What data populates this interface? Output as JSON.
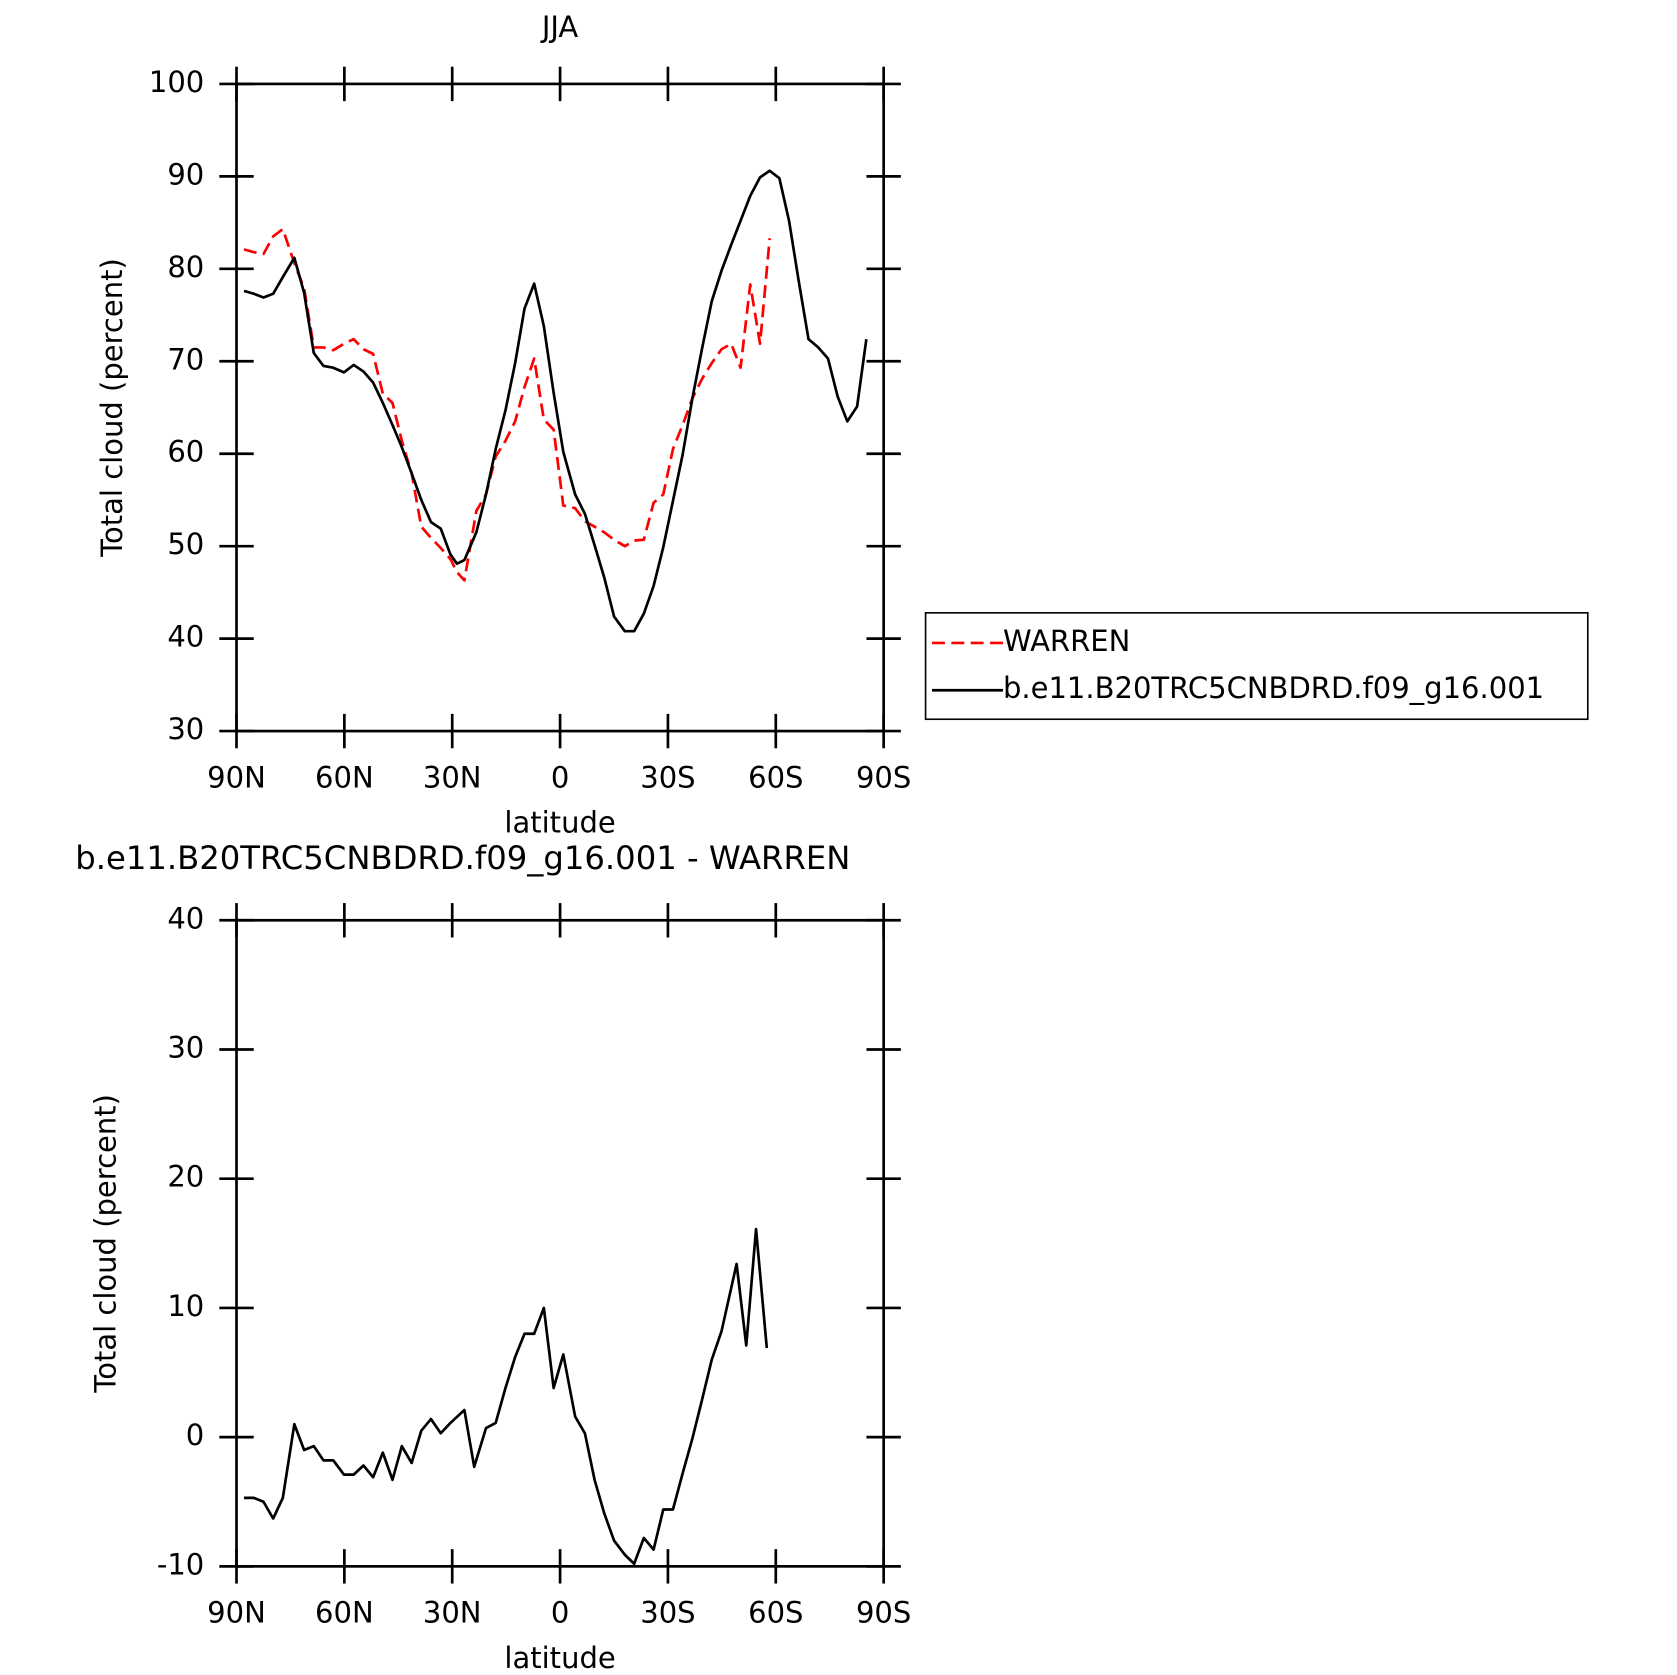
{
  "chart_data": [
    {
      "type": "line",
      "title": "JJA",
      "xlabel": "latitude",
      "ylabel": "Total cloud (percent)",
      "x": [
        87.9,
        85.2,
        82.5,
        79.8,
        77.1,
        73.9,
        71.2,
        68.5,
        65.8,
        63.1,
        60.1,
        57.4,
        54.7,
        52.0,
        49.3,
        46.6,
        44.0,
        41.3,
        38.6,
        35.9,
        33.2,
        30.5,
        28.7,
        26.6,
        23.3,
        20.6,
        17.9,
        15.2,
        12.5,
        9.9,
        7.2,
        4.5,
        1.8,
        -0.9,
        -4.2,
        -6.9,
        -9.6,
        -12.3,
        -15.0,
        -18.0,
        -20.6,
        -23.3,
        -26.0,
        -28.7,
        -31.4,
        -34.1,
        -36.8,
        -39.5,
        -42.2,
        -44.9,
        -47.6,
        -50.2,
        -52.9,
        -55.6,
        -58.3,
        -61.0,
        -63.7,
        -66.4,
        -69.1,
        -71.8,
        -74.5,
        -77.2,
        -79.9,
        -82.6,
        -85.2
      ],
      "series": [
        {
          "name": "WARREN",
          "color": "#ff0000",
          "linestyle": "dashed",
          "values": [
            82.1,
            81.8,
            81.6,
            83.5,
            84.3,
            80.6,
            77.9,
            71.5,
            71.5,
            71.2,
            71.9,
            72.4,
            71.3,
            70.8,
            66.5,
            65.5,
            61.4,
            57.9,
            52.1,
            50.9,
            49.8,
            48.6,
            47.2,
            46.3,
            53.8,
            55.6,
            59.7,
            61.4,
            63.5,
            67.2,
            70.3,
            63.7,
            62.6,
            54.4,
            54.1,
            52.7,
            52.1,
            51.5,
            50.7,
            50.0,
            50.6,
            50.7,
            54.7,
            55.6,
            60.5,
            63.1,
            66.0,
            68.1,
            69.8,
            71.3,
            71.9,
            69.3,
            78.3,
            71.9,
            83.3,
            null,
            null,
            null,
            null,
            null,
            null,
            null,
            null,
            null,
            null
          ]
        },
        {
          "name": "b.e11.B20TRC5CNBDRD.f09_g16.001",
          "color": "#000000",
          "linestyle": "solid",
          "values": [
            77.6,
            77.3,
            76.9,
            77.3,
            79.1,
            81.2,
            77.4,
            70.9,
            69.5,
            69.3,
            68.8,
            69.6,
            68.9,
            67.7,
            65.5,
            63.1,
            60.7,
            57.9,
            55.0,
            52.6,
            51.9,
            49.1,
            48.1,
            48.5,
            51.5,
            55.6,
            60.5,
            64.7,
            69.8,
            75.7,
            78.4,
            73.8,
            66.6,
            60.2,
            55.6,
            53.5,
            50.1,
            46.6,
            42.4,
            40.8,
            40.8,
            42.7,
            45.7,
            49.9,
            54.9,
            59.9,
            66.0,
            71.4,
            76.5,
            79.8,
            82.6,
            85.2,
            87.9,
            89.9,
            90.6,
            89.8,
            85.2,
            78.6,
            72.4,
            71.5,
            70.3,
            66.2,
            63.5,
            65.1,
            72.4
          ]
        }
      ],
      "xlim": [
        90,
        -90
      ],
      "xticks": [
        {
          "value": 90,
          "label": "90N"
        },
        {
          "value": 60,
          "label": "60N"
        },
        {
          "value": 30,
          "label": "30N"
        },
        0,
        {
          "value": -30,
          "label": "30S"
        },
        {
          "value": -60,
          "label": "60S"
        },
        {
          "value": -90,
          "label": "90S"
        }
      ],
      "ylim": [
        30,
        100
      ],
      "yticks": [
        30,
        40,
        50,
        60,
        70,
        80,
        90,
        100
      ],
      "legend": "outside right",
      "grid": false
    },
    {
      "type": "line",
      "title": "b.e11.B20TRC5CNBDRD.f09_g16.001 - WARREN",
      "xlabel": "latitude",
      "ylabel": "Total cloud (percent)",
      "x": [
        87.9,
        85.2,
        82.5,
        79.8,
        77.1,
        73.9,
        71.2,
        68.5,
        65.8,
        63.1,
        60.1,
        57.4,
        54.7,
        52.0,
        49.3,
        46.6,
        44.0,
        41.3,
        38.6,
        35.9,
        33.2,
        30.5,
        26.6,
        23.9,
        20.6,
        17.9,
        15.2,
        12.5,
        9.9,
        7.2,
        4.5,
        1.8,
        -0.9,
        -4.2,
        -6.9,
        -9.6,
        -12.3,
        -15.0,
        -18.0,
        -20.6,
        -23.3,
        -26.0,
        -28.7,
        -31.4,
        -34.1,
        -36.8,
        -39.5,
        -42.2,
        -44.9,
        -49.1,
        -51.8,
        -54.5,
        -57.5
      ],
      "color": "#000000",
      "values": [
        -4.7,
        -4.7,
        -5.0,
        -6.3,
        -4.7,
        1.0,
        -1.0,
        -0.7,
        -1.8,
        -1.8,
        -2.9,
        -2.9,
        -2.2,
        -3.1,
        -1.2,
        -3.3,
        -0.7,
        -2.0,
        0.5,
        1.4,
        0.3,
        1.1,
        2.1,
        -2.3,
        0.7,
        1.1,
        3.8,
        6.2,
        8.0,
        8.0,
        10.0,
        3.8,
        6.4,
        1.6,
        0.3,
        -3.3,
        -5.9,
        -8.0,
        -9.1,
        -9.8,
        -7.8,
        -8.7,
        -5.6,
        -5.6,
        -2.8,
        -0.1,
        2.9,
        6.0,
        8.2,
        13.4,
        7.1,
        16.1,
        6.9
      ],
      "xlim": [
        90,
        -90
      ],
      "xticks": [
        {
          "value": 90,
          "label": "90N"
        },
        {
          "value": 60,
          "label": "60N"
        },
        {
          "value": 30,
          "label": "30N"
        },
        0,
        {
          "value": -30,
          "label": "30S"
        },
        {
          "value": -60,
          "label": "60S"
        },
        {
          "value": -90,
          "label": "90S"
        }
      ],
      "ylim": [
        -10,
        40
      ],
      "yticks": [
        -10,
        0,
        10,
        20,
        30,
        40
      ],
      "grid": false
    }
  ]
}
